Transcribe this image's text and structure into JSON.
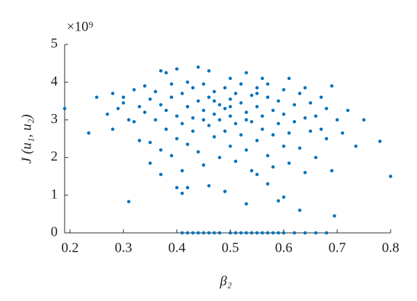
{
  "chart_data": {
    "type": "scatter",
    "ylabel": "J (u₁, u₂)",
    "xlabel": "β₂",
    "y_multiplier": "×10⁹",
    "color": "#0072bd",
    "xlim": [
      0.19,
      0.8
    ],
    "xticks": [
      0.2,
      0.3,
      0.4,
      0.5,
      0.6,
      0.7,
      0.8
    ],
    "ylim": [
      0,
      5
    ],
    "yticks": [
      0,
      1,
      2,
      3,
      4,
      5
    ],
    "x": [
      0.41,
      0.42,
      0.43,
      0.44,
      0.45,
      0.46,
      0.47,
      0.48,
      0.5,
      0.51,
      0.52,
      0.53,
      0.54,
      0.55,
      0.56,
      0.57,
      0.58,
      0.59,
      0.6,
      0.62,
      0.64,
      0.66,
      0.68,
      0.19,
      0.235,
      0.25,
      0.31,
      0.53,
      0.63,
      0.695,
      0.8,
      0.78,
      0.75,
      0.735,
      0.72,
      0.4,
      0.41,
      0.42,
      0.35,
      0.37,
      0.49,
      0.59,
      0.6,
      0.57,
      0.55,
      0.46,
      0.27,
      0.28,
      0.28,
      0.29,
      0.3,
      0.3,
      0.31,
      0.32,
      0.32,
      0.33,
      0.33,
      0.34,
      0.34,
      0.35,
      0.35,
      0.36,
      0.36,
      0.37,
      0.37,
      0.37,
      0.38,
      0.38,
      0.38,
      0.39,
      0.39,
      0.39,
      0.4,
      0.4,
      0.4,
      0.41,
      0.41,
      0.41,
      0.42,
      0.42,
      0.42,
      0.43,
      0.43,
      0.43,
      0.44,
      0.44,
      0.44,
      0.45,
      0.45,
      0.45,
      0.46,
      0.46,
      0.46,
      0.47,
      0.47,
      0.47,
      0.48,
      0.48,
      0.48,
      0.49,
      0.49,
      0.49,
      0.5,
      0.5,
      0.5,
      0.5,
      0.51,
      0.51,
      0.51,
      0.52,
      0.52,
      0.52,
      0.53,
      0.53,
      0.53,
      0.54,
      0.54,
      0.54,
      0.55,
      0.55,
      0.55,
      0.56,
      0.56,
      0.56,
      0.57,
      0.57,
      0.57,
      0.58,
      0.58,
      0.58,
      0.59,
      0.59,
      0.6,
      0.6,
      0.6,
      0.61,
      0.61,
      0.61,
      0.62,
      0.62,
      0.63,
      0.63,
      0.64,
      0.64,
      0.64,
      0.65,
      0.65,
      0.66,
      0.66,
      0.67,
      0.67,
      0.68,
      0.68,
      0.69,
      0.69,
      0.7,
      0.71,
      0.5,
      0.47,
      0.53,
      0.45,
      0.55
    ],
    "values": [
      0,
      0,
      0,
      0,
      0,
      0,
      0,
      0,
      0,
      0,
      0,
      0,
      0,
      0,
      0,
      0,
      0,
      0,
      0,
      0,
      0,
      0,
      0,
      3.3,
      2.65,
      3.6,
      0.83,
      0.77,
      0.6,
      0.45,
      1.5,
      2.43,
      3.0,
      2.3,
      3.25,
      1.2,
      1.05,
      1.2,
      1.85,
      1.55,
      1.1,
      0.85,
      0.95,
      1.3,
      1.55,
      1.25,
      3.15,
      3.7,
      2.75,
      3.3,
      3.6,
      3.45,
      3.0,
      3.8,
      2.95,
      3.35,
      2.45,
      3.9,
      3.2,
      3.55,
      2.4,
      3.0,
      3.75,
      4.3,
      2.2,
      3.4,
      4.25,
      2.75,
      3.25,
      3.95,
      2.05,
      3.6,
      4.35,
      3.1,
      2.5,
      3.7,
      2.9,
      1.65,
      3.35,
      2.35,
      4.0,
      3.05,
      3.85,
      2.7,
      4.4,
      3.5,
      2.15,
      3.25,
      1.8,
      3.95,
      2.85,
      3.6,
      4.3,
      3.15,
      2.55,
      3.75,
      3.4,
      2.0,
      3.0,
      3.85,
      2.7,
      3.3,
      3.55,
      2.3,
      4.1,
      3.1,
      2.9,
      3.7,
      1.9,
      3.45,
      2.6,
      3.95,
      3.2,
      4.25,
      2.2,
      3.65,
      2.95,
      1.65,
      3.85,
      3.35,
      2.45,
      4.1,
      2.75,
      3.1,
      3.6,
      2.05,
      3.95,
      3.25,
      2.6,
      1.75,
      3.5,
      2.9,
      3.8,
      2.3,
      3.15,
      4.1,
      2.65,
      1.85,
      3.4,
      2.95,
      3.7,
      2.25,
      3.05,
      3.85,
      1.6,
      2.7,
      3.45,
      2.0,
      3.1,
      2.75,
      3.6,
      3.3,
      2.5,
      3.9,
      1.65,
      3.0,
      2.65,
      3.35,
      3.5,
      3.0,
      3.0,
      3.7
    ]
  }
}
